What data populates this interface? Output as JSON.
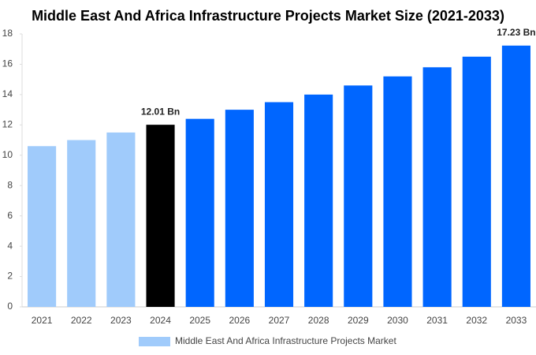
{
  "chart_data": {
    "type": "bar",
    "title": "Middle East And Africa Infrastructure Projects Market Size (2021-2033)",
    "categories": [
      "2021",
      "2022",
      "2023",
      "2024",
      "2025",
      "2026",
      "2027",
      "2028",
      "2029",
      "2030",
      "2031",
      "2032",
      "2033"
    ],
    "series": [
      {
        "name": "Middle East And Africa Infrastructure Projects Market",
        "color": "#a0cbfb",
        "colors": [
          "#a0cbfb",
          "#a0cbfb",
          "#a0cbfb",
          "#000000",
          "#0066ff",
          "#0066ff",
          "#0066ff",
          "#0066ff",
          "#0066ff",
          "#0066ff",
          "#0066ff",
          "#0066ff",
          "#0066ff"
        ],
        "values": [
          10.6,
          11.0,
          11.5,
          12.01,
          12.4,
          13.0,
          13.5,
          14.0,
          14.6,
          15.2,
          15.8,
          16.5,
          17.23
        ],
        "value_labels": [
          null,
          null,
          null,
          "12.01 Bn",
          null,
          null,
          null,
          null,
          null,
          null,
          null,
          null,
          "17.23 Bn"
        ]
      }
    ],
    "ylim": [
      0,
      18
    ],
    "yticks": [
      0,
      2,
      4,
      6,
      8,
      10,
      12,
      14,
      16,
      18
    ],
    "grid": false
  }
}
